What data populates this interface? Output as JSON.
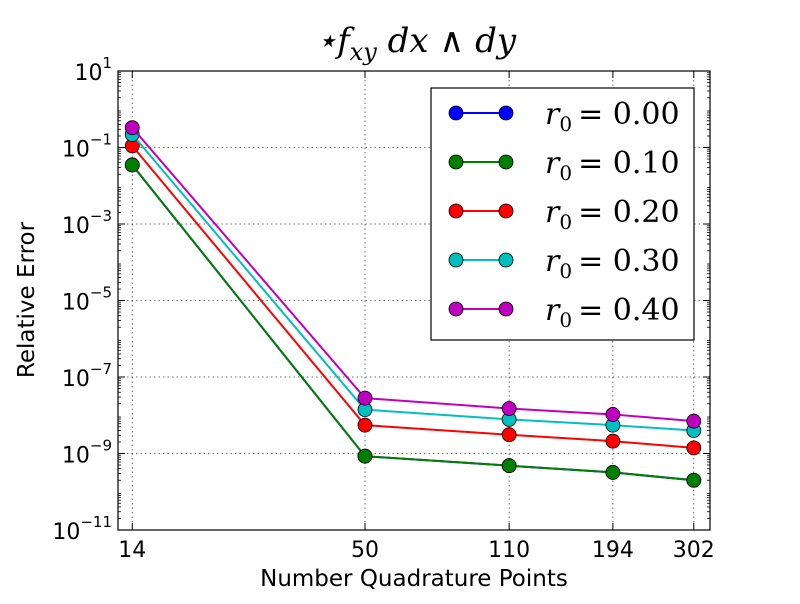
{
  "chart_data": {
    "type": "line",
    "title": "⋆f_xy dx ∧ dy",
    "xlabel": "Number Quadrature Points",
    "ylabel": "Relative Error",
    "x_ticks": [
      14,
      50,
      110,
      194,
      302
    ],
    "x_tick_labels": [
      "14",
      "50",
      "110",
      "194",
      "302"
    ],
    "y_scale": "log",
    "ylim": [
      1e-11,
      10
    ],
    "y_tick_exponents": [
      1,
      -1,
      -3,
      -5,
      -7,
      -9,
      -11
    ],
    "grid": true,
    "legend_position": "top-right",
    "series": [
      {
        "name": "r_0 = 0.00",
        "label_var": "r",
        "label_sub": "0",
        "label_value": "= 0.00",
        "color": "#0000ff",
        "x": [
          14,
          50,
          110,
          194,
          302
        ],
        "values": [
          0.035,
          8.5e-10,
          4.8e-10,
          3.2e-10,
          2e-10
        ]
      },
      {
        "name": "r_0 = 0.10",
        "label_var": "r",
        "label_sub": "0",
        "label_value": "= 0.10",
        "color": "#007f00",
        "x": [
          14,
          50,
          110,
          194,
          302
        ],
        "values": [
          0.035,
          8.5e-10,
          4.8e-10,
          3.2e-10,
          2e-10
        ]
      },
      {
        "name": "r_0 = 0.20",
        "label_var": "r",
        "label_sub": "0",
        "label_value": "= 0.20",
        "color": "#ff0000",
        "x": [
          14,
          50,
          110,
          194,
          302
        ],
        "values": [
          0.11,
          5.5e-09,
          3.1e-09,
          2.1e-09,
          1.4e-09
        ]
      },
      {
        "name": "r_0 = 0.30",
        "label_var": "r",
        "label_sub": "0",
        "label_value": "= 0.30",
        "color": "#00bfbf",
        "x": [
          14,
          50,
          110,
          194,
          302
        ],
        "values": [
          0.22,
          1.4e-08,
          7.8e-09,
          5.5e-09,
          4e-09
        ]
      },
      {
        "name": "r_0 = 0.40",
        "label_var": "r",
        "label_sub": "0",
        "label_value": "= 0.40",
        "color": "#bf00bf",
        "x": [
          14,
          50,
          110,
          194,
          302
        ],
        "values": [
          0.33,
          2.8e-08,
          1.5e-08,
          1.05e-08,
          7e-09
        ]
      }
    ]
  }
}
